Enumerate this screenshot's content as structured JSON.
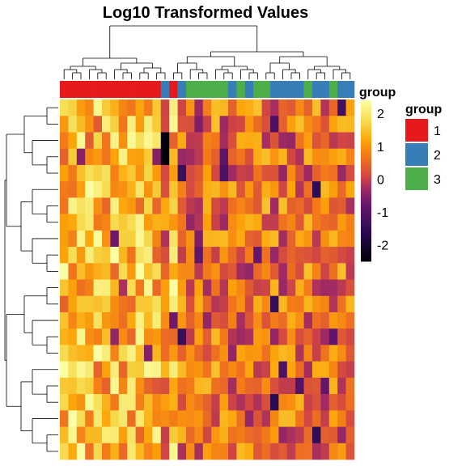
{
  "chart_data": {
    "type": "heatmap",
    "title": "Log10 Transformed Values",
    "n_rows": 22,
    "n_cols": 35,
    "column_groups": [
      1,
      1,
      1,
      1,
      1,
      1,
      1,
      1,
      1,
      1,
      1,
      1,
      2,
      1,
      2,
      3,
      3,
      3,
      3,
      3,
      2,
      3,
      2,
      3,
      3,
      2,
      2,
      2,
      2,
      3,
      2,
      2,
      3,
      2,
      2
    ],
    "color_scale": {
      "legend_title": "group",
      "ticks": [
        "2",
        "1",
        "0",
        "-1",
        "-2"
      ],
      "tick_values": [
        2,
        1,
        0,
        -1,
        -2
      ],
      "min": -2.5,
      "max": 2.4,
      "stops": [
        {
          "v": -2.5,
          "c": "#000004"
        },
        {
          "v": -1.6,
          "c": "#280b54"
        },
        {
          "v": -0.8,
          "c": "#65156e"
        },
        {
          "v": -0.3,
          "c": "#9f2a63"
        },
        {
          "v": 0.1,
          "c": "#d44842"
        },
        {
          "v": 0.7,
          "c": "#f37819"
        },
        {
          "v": 1.2,
          "c": "#fca50a"
        },
        {
          "v": 1.7,
          "c": "#f6d746"
        },
        {
          "v": 2.4,
          "c": "#fcffa4"
        }
      ]
    },
    "group_legend": {
      "title": "group",
      "items": [
        {
          "label": "1",
          "color": "#e41a1c"
        },
        {
          "label": "2",
          "color": "#377eb8"
        },
        {
          "label": "3",
          "color": "#4daf4a"
        }
      ]
    },
    "annotation_label": "group"
  }
}
